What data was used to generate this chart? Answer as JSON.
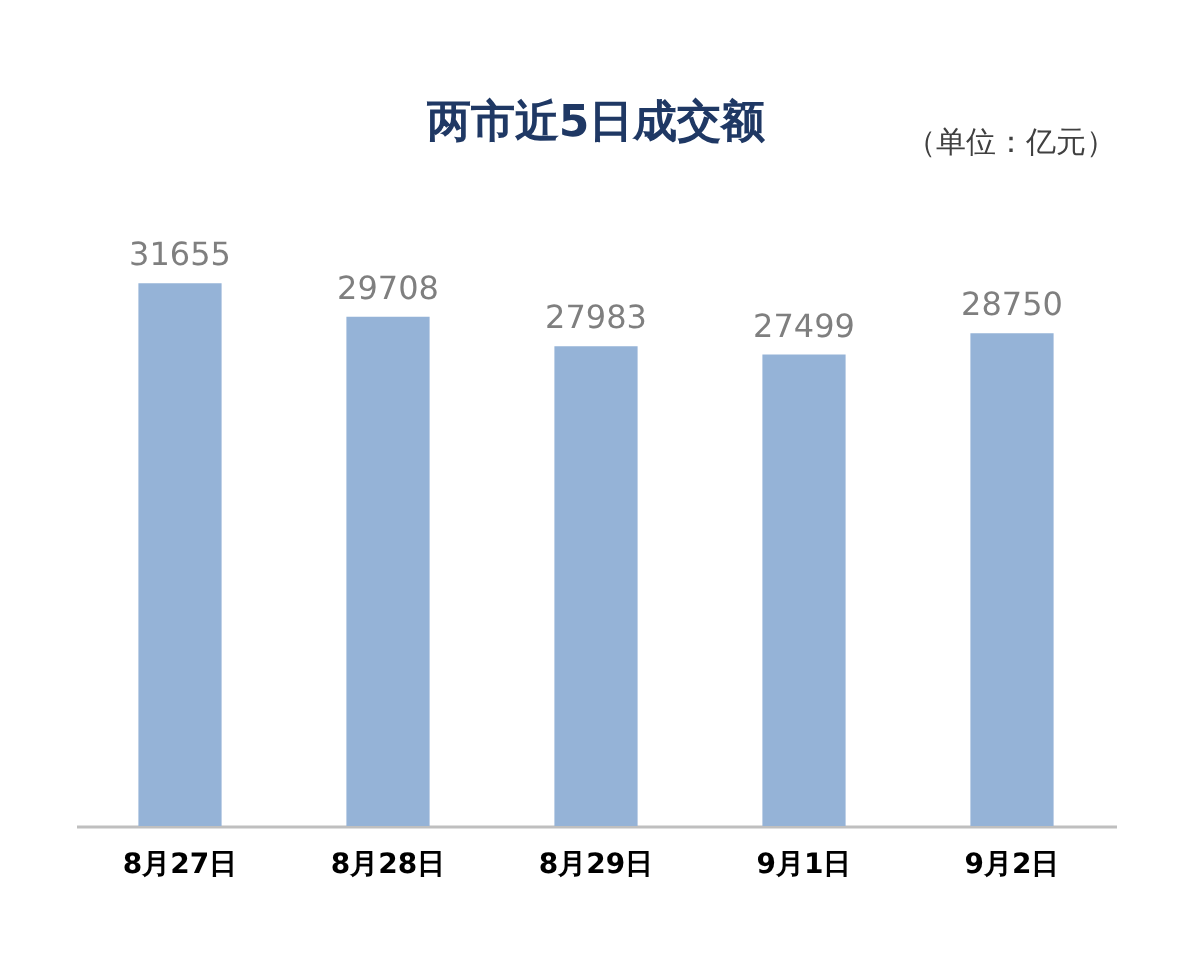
{
  "chart_data": {
    "type": "bar",
    "title": "两市近5日成交额",
    "annotations": [
      "（单位：亿元）"
    ],
    "categories": [
      "8月27日",
      "8月28日",
      "8月29日",
      "9月1日",
      "9月2日"
    ],
    "values": [
      31655,
      29708,
      27983,
      27499,
      28750
    ],
    "color": "#95b3d7",
    "data_labels": true
  }
}
